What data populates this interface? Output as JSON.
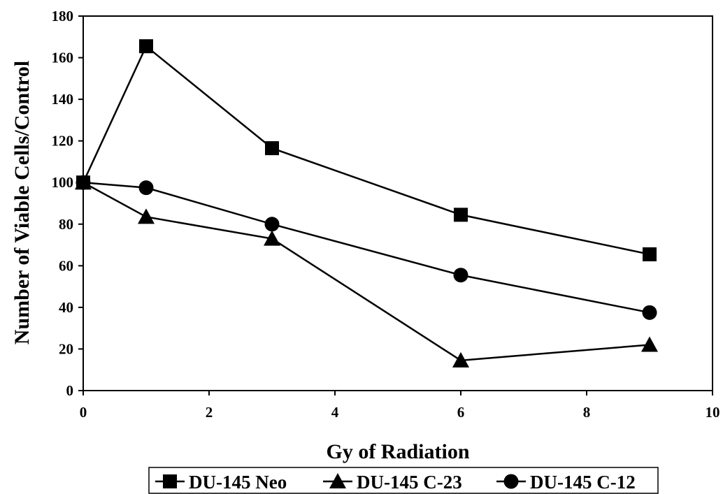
{
  "chart_data": {
    "type": "line",
    "xlabel": "Gy of Radiation",
    "ylabel": "Number of Viable Cells/Control",
    "xlim": [
      0,
      10
    ],
    "ylim": [
      0,
      180
    ],
    "xticks": [
      0,
      2,
      4,
      6,
      8,
      10
    ],
    "yticks": [
      0,
      20,
      40,
      60,
      80,
      100,
      120,
      140,
      160,
      180
    ],
    "grid": false,
    "legend_position": "bottom",
    "series": [
      {
        "name": "DU-145 Neo",
        "marker": "square",
        "x": [
          0,
          1,
          3,
          6,
          9
        ],
        "y": [
          100,
          165.5,
          116.5,
          84.5,
          65.5
        ]
      },
      {
        "name": "DU-145 C-23",
        "marker": "triangle",
        "x": [
          0,
          1,
          3,
          6,
          9
        ],
        "y": [
          100,
          83.5,
          73,
          14.5,
          22
        ]
      },
      {
        "name": "DU-145 C-12",
        "marker": "circle",
        "x": [
          0,
          1,
          3,
          6,
          9
        ],
        "y": [
          100,
          97.5,
          80,
          55.5,
          37.5
        ]
      }
    ]
  }
}
